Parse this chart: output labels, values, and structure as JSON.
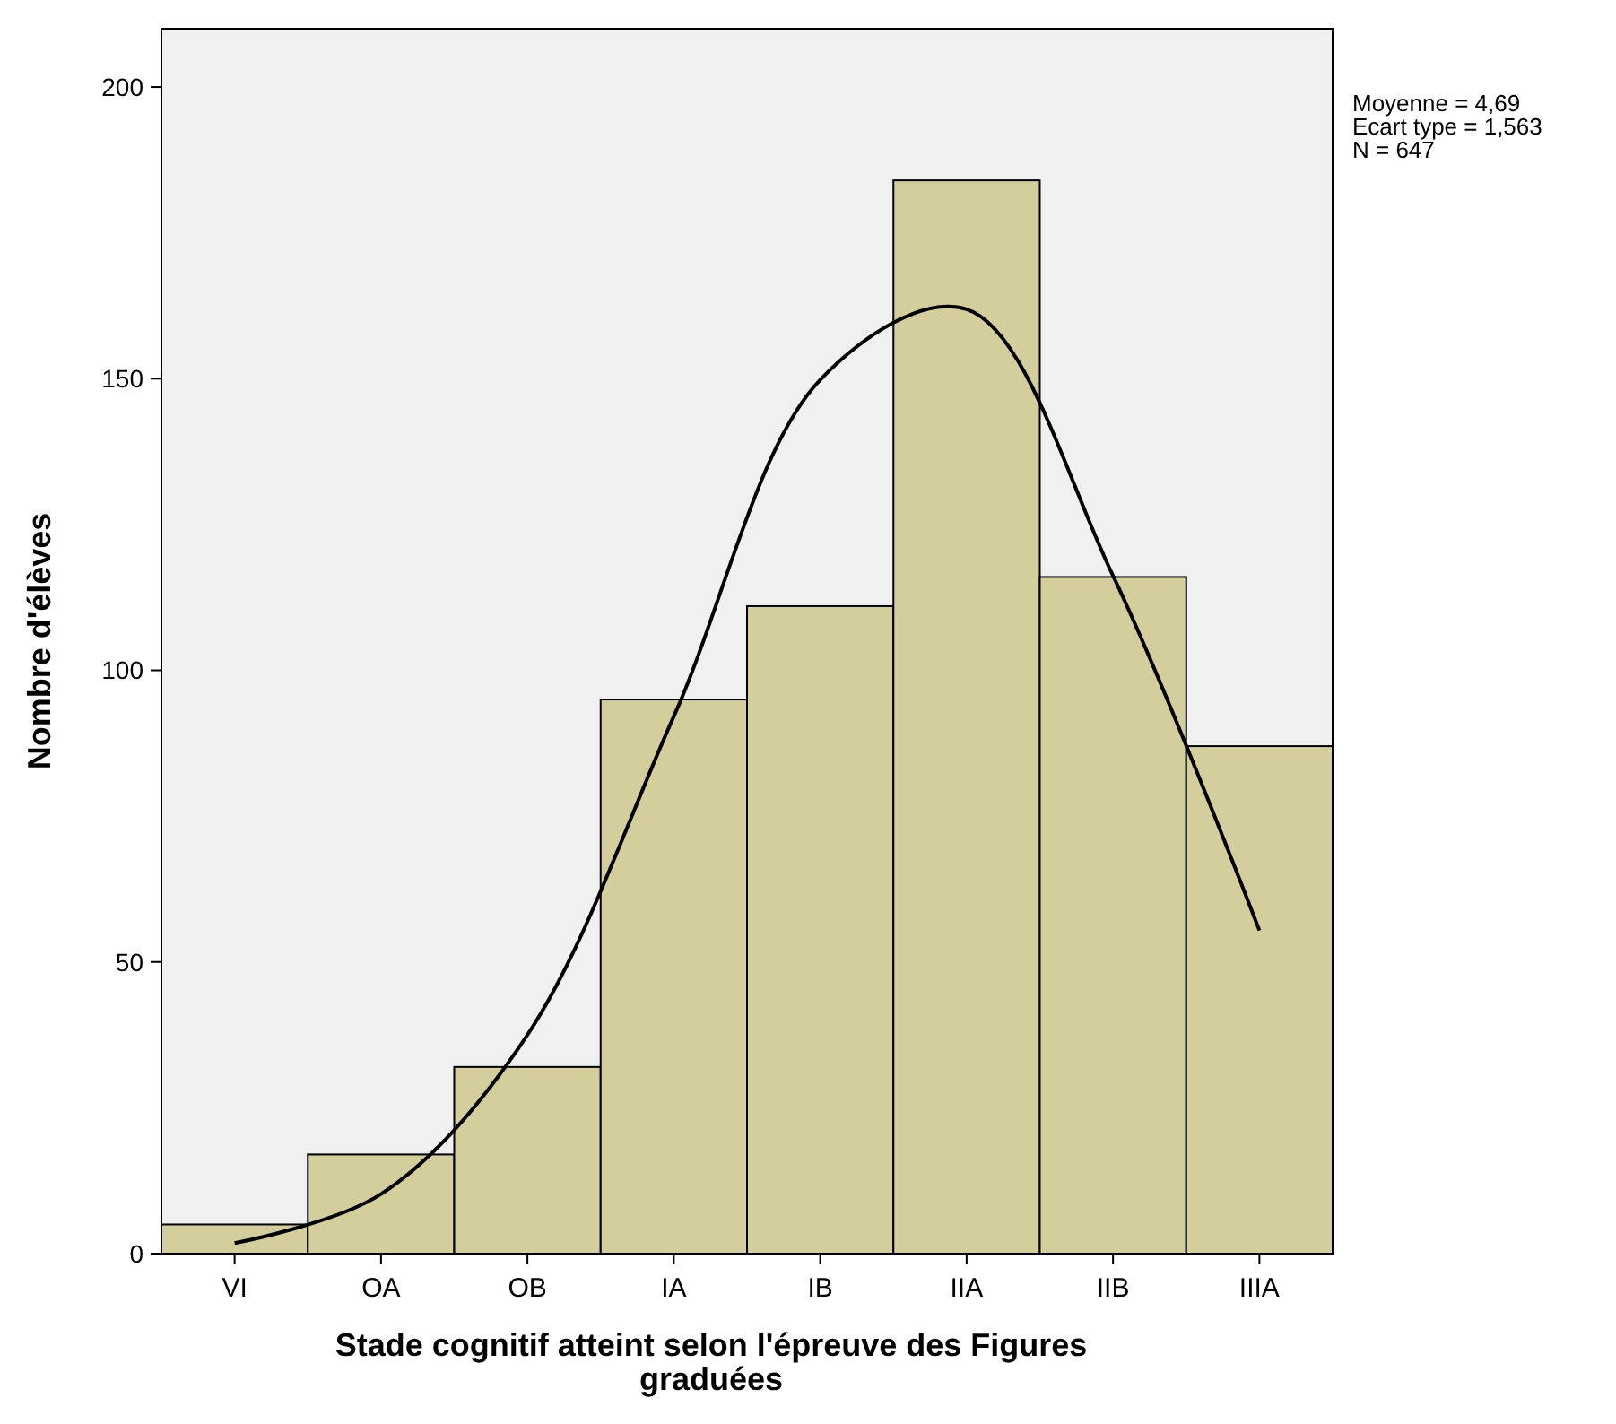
{
  "chart_data": {
    "type": "bar",
    "xlabel": "Stade cognitif atteint selon l'épreuve des Figures graduées",
    "ylabel": "Nombre d'élèves",
    "annotations": [
      "Moyenne = 4,69",
      "Ecart type = 1,563",
      "N = 647"
    ],
    "categories": [
      "VI",
      "OA",
      "OB",
      "IA",
      "IB",
      "IIA",
      "IIB",
      "IIIA"
    ],
    "values": [
      5,
      17,
      32,
      95,
      111,
      184,
      116,
      87
    ],
    "color": "#d3ce9b",
    "ylim": [
      0,
      210
    ],
    "yticks": [
      0,
      50,
      100,
      150,
      200
    ],
    "grid": false,
    "series": [
      {
        "type": "line",
        "color": "#000000",
        "values": [
          1.8,
          10.2,
          37.5,
          92.1,
          149.8,
          161.9,
          116.2,
          55.4
        ]
      }
    ]
  }
}
